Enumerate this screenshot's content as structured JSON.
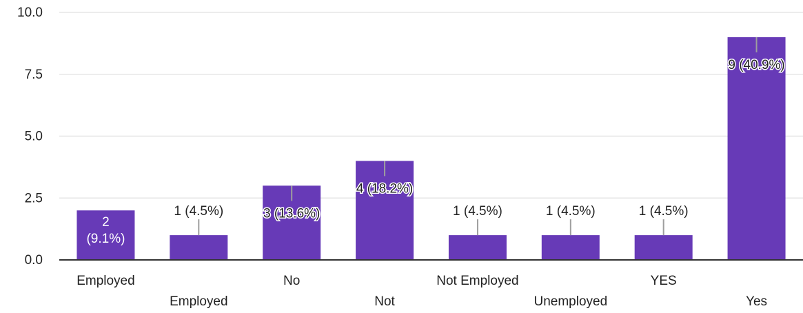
{
  "chart_data": {
    "type": "bar",
    "title": "",
    "xlabel": "",
    "ylabel": "",
    "ylim": [
      0,
      10
    ],
    "yticks": [
      "0.0",
      "2.5",
      "5.0",
      "7.5",
      "10.0"
    ],
    "grid": true,
    "categories": [
      "Employed",
      "Employed",
      "No",
      "Not",
      "Not Employed",
      "Unemployed",
      "YES",
      "Yes"
    ],
    "values": [
      2,
      1,
      3,
      4,
      1,
      1,
      1,
      9
    ],
    "data_labels": [
      "2\n(9.1%)",
      "1 (4.5%)",
      "3 (13.6%)",
      "4 (18.2%)",
      "1 (4.5%)",
      "1 (4.5%)",
      "1 (4.5%)",
      "9 (40.9%)"
    ],
    "bar_color": "#673ab7",
    "grid_color": "#e6e6e6",
    "axis_color": "#333333"
  }
}
